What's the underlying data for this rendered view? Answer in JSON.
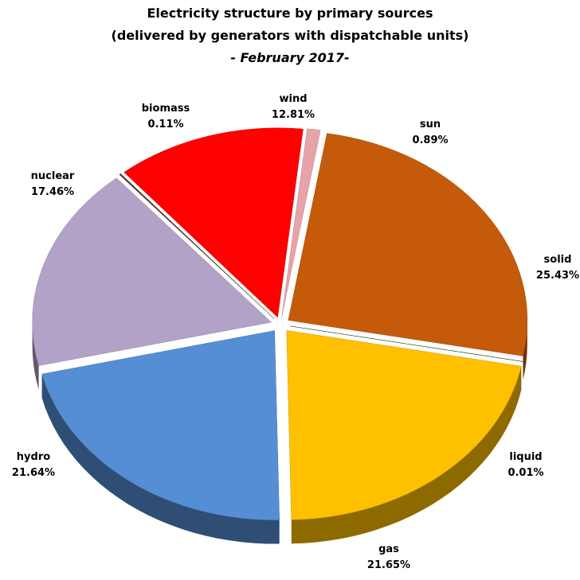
{
  "chart_data": {
    "type": "pie",
    "title": "Electricity structure by primary sources",
    "subtitle": "(delivered by generators with dispatchable units)",
    "period": "- February 2017-",
    "categories": [
      "wind",
      "sun",
      "solid",
      "liquid",
      "gas",
      "hydro",
      "nuclear",
      "biomass"
    ],
    "values": [
      12.81,
      0.89,
      25.43,
      0.01,
      21.65,
      21.64,
      17.46,
      0.11
    ],
    "value_labels": [
      "12.81%",
      "0.89%",
      "25.43%",
      "0.01%",
      "21.65%",
      "21.64%",
      "17.46%",
      "0.11%"
    ],
    "colors": [
      "#ff0000",
      "#e6a3aa",
      "#c55a0a",
      "#2e5e1e",
      "#ffc000",
      "#558ed5",
      "#b3a2c7",
      "#4a3c2a"
    ]
  }
}
